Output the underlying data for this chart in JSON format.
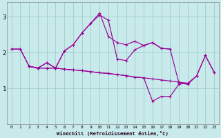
{
  "xlabel": "Windchill (Refroidissement éolien,°C)",
  "line_color": "#990099",
  "bg_color": "#c8eaea",
  "grid_color": "#a0cccc",
  "ylim": [
    0.0,
    3.4
  ],
  "xlim": [
    -0.5,
    23.5
  ],
  "yticks": [
    1,
    2,
    3
  ],
  "xticks": [
    0,
    1,
    2,
    3,
    4,
    5,
    6,
    7,
    8,
    9,
    10,
    11,
    12,
    13,
    14,
    15,
    16,
    17,
    18,
    19,
    20,
    21,
    22,
    23
  ],
  "lines": [
    {
      "x": [
        0,
        1,
        2,
        3,
        4,
        5,
        6,
        7,
        8,
        9,
        10,
        11,
        12,
        13,
        14,
        15,
        16,
        17,
        18
      ],
      "y": [
        2.1,
        2.1,
        1.62,
        1.57,
        1.72,
        1.57,
        2.05,
        2.22,
        2.55,
        2.82,
        3.1,
        2.45,
        2.28,
        2.22,
        2.32,
        2.2,
        2.28,
        2.12,
        2.1
      ]
    },
    {
      "x": [
        0,
        1,
        2,
        3,
        4,
        5,
        6,
        7,
        8,
        9,
        10,
        11,
        12,
        13,
        14,
        15,
        16,
        17,
        18,
        19,
        20,
        21,
        22,
        23
      ],
      "y": [
        2.1,
        2.1,
        1.62,
        1.57,
        1.72,
        1.57,
        2.05,
        2.22,
        2.55,
        2.82,
        3.05,
        2.9,
        1.82,
        1.78,
        2.08,
        2.2,
        2.28,
        2.12,
        2.1,
        1.15,
        1.12,
        1.35,
        1.92,
        1.45
      ]
    },
    {
      "x": [
        2,
        3,
        4,
        5,
        6,
        7,
        8,
        9,
        10,
        11,
        12,
        13,
        14,
        15,
        16,
        17,
        18,
        19,
        20
      ],
      "y": [
        1.62,
        1.57,
        1.57,
        1.57,
        1.54,
        1.52,
        1.5,
        1.47,
        1.44,
        1.42,
        1.39,
        1.36,
        1.32,
        1.3,
        0.65,
        0.78,
        0.78,
        1.12,
        1.15
      ]
    },
    {
      "x": [
        2,
        3,
        4,
        5,
        6,
        7,
        8,
        9,
        10,
        11,
        12,
        13,
        14,
        15,
        16,
        17,
        18,
        19,
        20,
        21,
        22,
        23
      ],
      "y": [
        1.62,
        1.57,
        1.57,
        1.57,
        1.54,
        1.52,
        1.5,
        1.47,
        1.44,
        1.42,
        1.39,
        1.36,
        1.32,
        1.3,
        1.27,
        1.24,
        1.21,
        1.18,
        1.15,
        1.35,
        1.92,
        1.45
      ]
    }
  ]
}
